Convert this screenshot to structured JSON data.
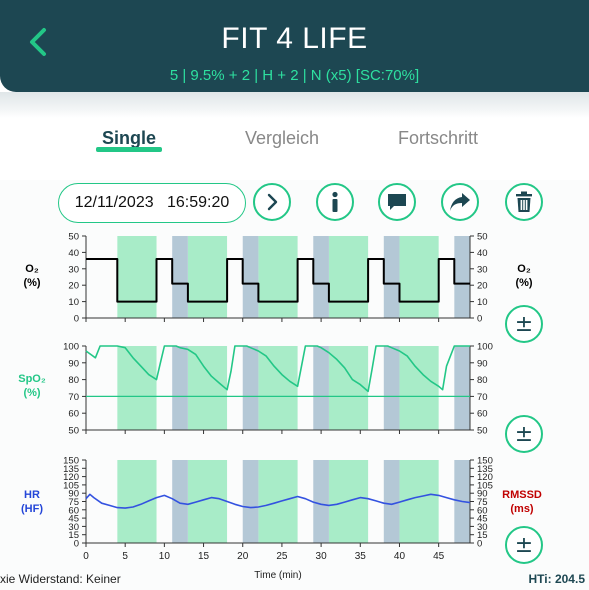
{
  "header": {
    "title": "FIT 4 LIFE",
    "subtitle": "5 | 9.5% + 2 | H + 2 | N    (x5)    [SC:70%]"
  },
  "tabs": [
    {
      "label": "Single",
      "active": true
    },
    {
      "label": "Vergleich",
      "active": false
    },
    {
      "label": "Fortschritt",
      "active": false
    }
  ],
  "toolbar": {
    "datetime": "12/11/2023   16:59:20",
    "icons": [
      "chevron-right-icon",
      "info-icon",
      "comment-icon",
      "share-icon",
      "trash-icon"
    ]
  },
  "colors": {
    "header_bg": "#1d4752",
    "accent": "#23c787",
    "hypoxia_band": "#a8ecc8",
    "recovery_band": "#b4c8d6",
    "spo2_line": "#23c787",
    "hr_line": "#3352e0",
    "rmssd_label": "#c00000"
  },
  "chart_data": [
    {
      "type": "line",
      "name": "o2-chart",
      "ylabel_left": [
        "O₂",
        "(%)"
      ],
      "ylabel_right": [
        "O₂",
        "(%)"
      ],
      "ylim": [
        0,
        50
      ],
      "yticks": [
        0,
        10,
        20,
        30,
        40,
        50
      ],
      "x": [
        0,
        4,
        4,
        9,
        9,
        11,
        11,
        13,
        13,
        18,
        18,
        20,
        20,
        22,
        22,
        27,
        27,
        29,
        29,
        31,
        31,
        36,
        36,
        38,
        38,
        40,
        40,
        45,
        45,
        47,
        47,
        49
      ],
      "values": [
        36,
        36,
        10,
        10,
        36,
        36,
        21,
        21,
        10,
        10,
        36,
        36,
        21,
        21,
        10,
        10,
        36,
        36,
        21,
        21,
        10,
        10,
        36,
        36,
        21,
        21,
        10,
        10,
        36,
        36,
        21,
        21
      ],
      "line_color": "#000000"
    },
    {
      "type": "line",
      "name": "spo2-chart",
      "ylabel_left": [
        "SpO₂",
        "(%)"
      ],
      "ylim": [
        50,
        100
      ],
      "yticks": [
        50,
        60,
        70,
        80,
        90,
        100
      ],
      "reference_line": 70,
      "x": [
        0,
        0.6,
        1.2,
        1.8,
        4,
        5,
        6,
        7,
        8,
        9,
        9.5,
        10,
        11,
        11.5,
        12,
        13,
        14,
        15,
        16,
        17,
        18,
        18.5,
        19,
        20,
        20.5,
        21,
        22,
        23,
        24,
        25,
        26,
        27,
        27.5,
        28,
        29,
        29.5,
        30,
        31,
        32,
        33,
        34,
        35,
        36,
        36.5,
        37,
        38,
        38.5,
        39,
        40,
        41,
        42,
        43,
        44,
        45,
        45.5,
        46,
        47,
        48,
        49
      ],
      "values": [
        97,
        95,
        93,
        100,
        100,
        99,
        93,
        88,
        83,
        80,
        90,
        100,
        100,
        100,
        99,
        98,
        95,
        88,
        82,
        78,
        74,
        85,
        100,
        100,
        100,
        99,
        97,
        94,
        88,
        83,
        79,
        76,
        88,
        100,
        100,
        100,
        99,
        96,
        92,
        87,
        80,
        77,
        73,
        86,
        100,
        100,
        100,
        99,
        97,
        94,
        88,
        83,
        79,
        76,
        74,
        88,
        100,
        100,
        100
      ],
      "line_color": "#23c787"
    },
    {
      "type": "line",
      "name": "hr-chart",
      "ylabel_left": [
        "HR",
        "(HF)"
      ],
      "ylabel_right": [
        "RMSSD",
        "(ms)"
      ],
      "ylim": [
        0,
        150
      ],
      "yticks": [
        0,
        15,
        30,
        45,
        60,
        75,
        90,
        105,
        120,
        135,
        150
      ],
      "xlabel": "Time (min)",
      "xlim": [
        0,
        49
      ],
      "xticks": [
        0,
        5,
        10,
        15,
        20,
        25,
        30,
        35,
        40,
        45
      ],
      "x": [
        0,
        0.5,
        1,
        2,
        3,
        4,
        5,
        6,
        7,
        8,
        9,
        10,
        11,
        12,
        13,
        14,
        15,
        16,
        17,
        18,
        19,
        20,
        21,
        22,
        23,
        24,
        25,
        26,
        27,
        28,
        29,
        30,
        31,
        32,
        33,
        34,
        35,
        36,
        37,
        38,
        39,
        40,
        41,
        42,
        43,
        44,
        45,
        46,
        47,
        48,
        49
      ],
      "values": [
        80,
        88,
        82,
        72,
        68,
        64,
        63,
        65,
        70,
        76,
        82,
        86,
        80,
        72,
        70,
        74,
        78,
        82,
        80,
        75,
        70,
        66,
        64,
        65,
        68,
        72,
        76,
        80,
        84,
        80,
        74,
        70,
        68,
        70,
        74,
        78,
        82,
        80,
        76,
        72,
        70,
        74,
        78,
        82,
        85,
        88,
        86,
        82,
        78,
        75,
        73
      ],
      "line_color": "#3352e0"
    }
  ],
  "bands": {
    "hypoxia": [
      [
        4,
        9
      ],
      [
        13,
        18
      ],
      [
        22,
        27
      ],
      [
        31,
        36
      ],
      [
        40,
        45
      ]
    ],
    "recovery": [
      [
        11,
        13
      ],
      [
        20,
        22
      ],
      [
        29,
        31
      ],
      [
        38,
        40
      ],
      [
        47,
        49
      ]
    ]
  },
  "footer": {
    "left": "xie Widerstand: Keiner",
    "right": "HTi: 204.5"
  }
}
